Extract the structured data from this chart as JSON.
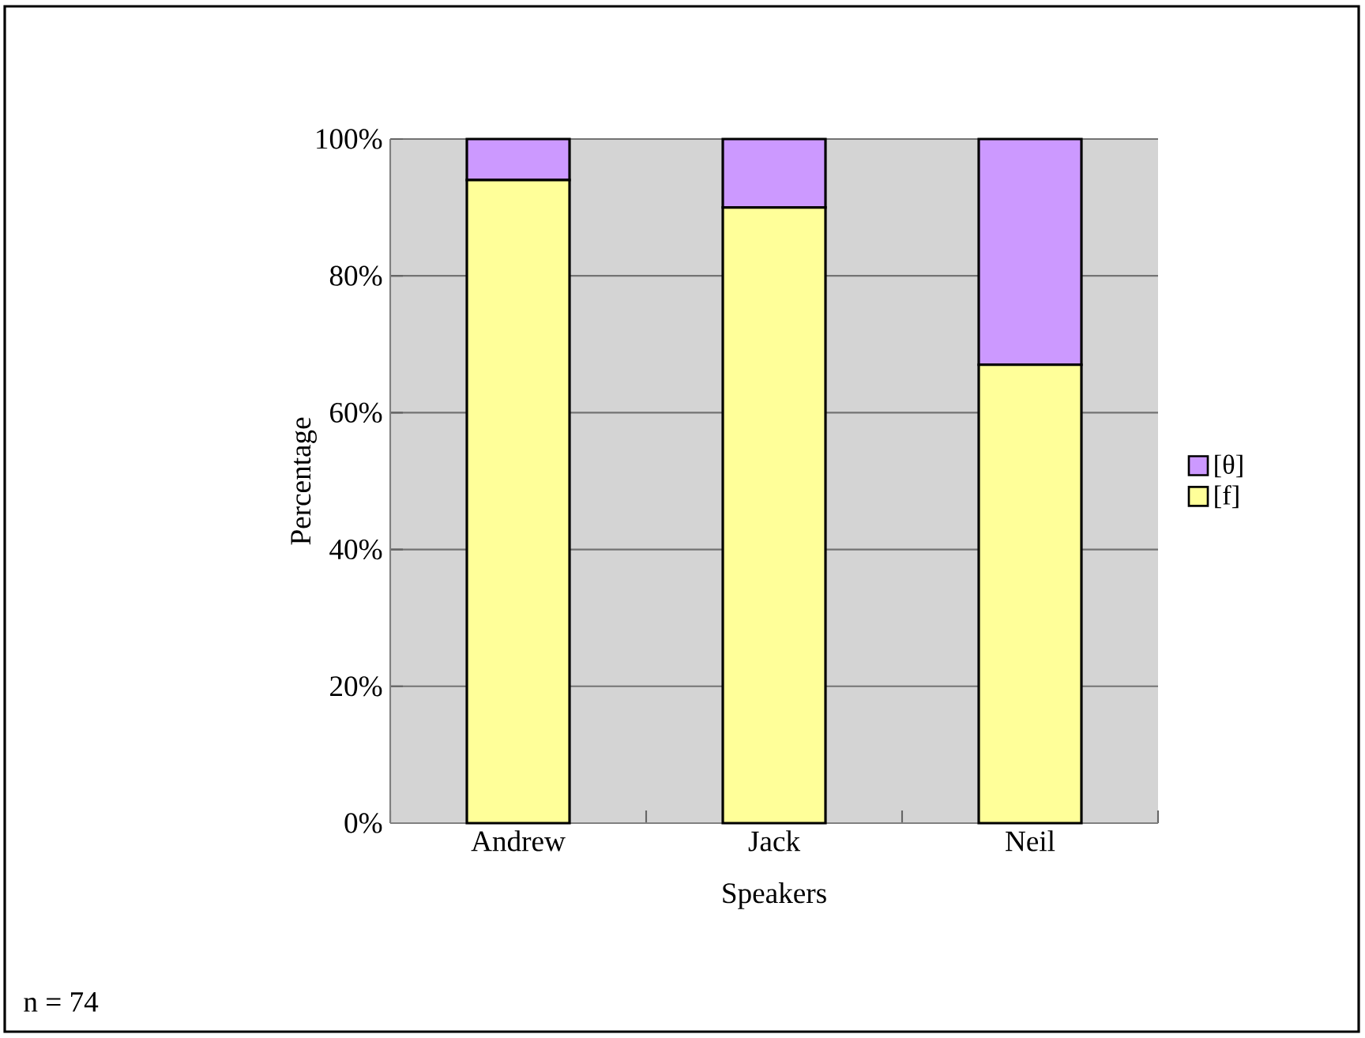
{
  "chart_data": {
    "type": "bar",
    "stacked": true,
    "xlabel": "Speakers",
    "ylabel": "Percentage",
    "categories": [
      "Andrew",
      "Jack",
      "Neil"
    ],
    "series": [
      {
        "name": "[f]",
        "color": "#ffff99",
        "values": [
          94,
          90,
          67
        ]
      },
      {
        "name": "[θ]",
        "color": "#cc99ff",
        "values": [
          6,
          10,
          33
        ]
      }
    ],
    "ylim": [
      0,
      100
    ],
    "yticks": [
      {
        "value": 0,
        "label": "0%"
      },
      {
        "value": 20,
        "label": "20%"
      },
      {
        "value": 40,
        "label": "40%"
      },
      {
        "value": 60,
        "label": "60%"
      },
      {
        "value": 80,
        "label": "80%"
      },
      {
        "value": 100,
        "label": "100%"
      }
    ],
    "grid": "y",
    "legend": "right",
    "annotations": [
      "n = 74"
    ]
  }
}
